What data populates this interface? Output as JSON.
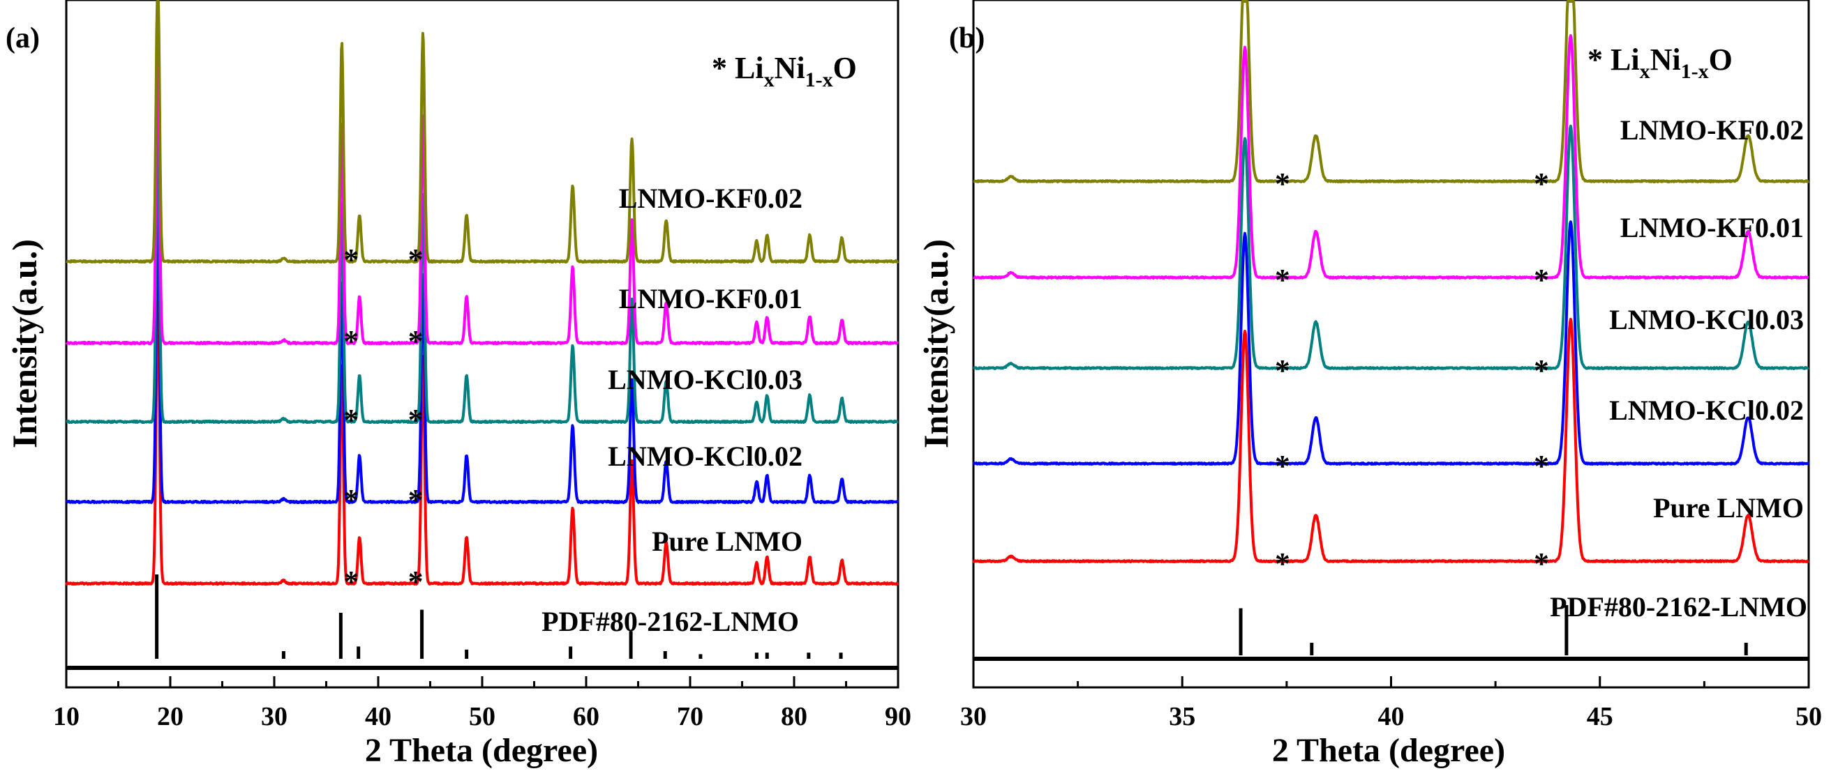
{
  "chart_data": [
    {
      "id": "a",
      "type": "line",
      "panel_label": "(a)",
      "xlabel": "2 Theta (degree)",
      "ylabel": "Intensity(a.u.)",
      "xlim": [
        10,
        90
      ],
      "xticks": [
        10,
        20,
        30,
        40,
        50,
        60,
        70,
        80,
        90
      ],
      "xtick_labels": [
        "10",
        "20",
        "30",
        "40",
        "50",
        "60",
        "70",
        "80",
        "90"
      ],
      "legend": {
        "symbol": "*",
        "base": "Li",
        "sub1": "x",
        "mid": "Ni",
        "sub2": "1-x",
        "end": "O"
      },
      "reference": {
        "name": "PDF#80-2162-LNMO",
        "lines": [
          {
            "x": 18.7,
            "h": 0.55
          },
          {
            "x": 30.9,
            "h": 0.05
          },
          {
            "x": 36.4,
            "h": 0.3
          },
          {
            "x": 38.1,
            "h": 0.08
          },
          {
            "x": 44.2,
            "h": 0.32
          },
          {
            "x": 48.5,
            "h": 0.06
          },
          {
            "x": 58.5,
            "h": 0.08
          },
          {
            "x": 64.3,
            "h": 0.18
          },
          {
            "x": 67.6,
            "h": 0.05
          },
          {
            "x": 71.0,
            "h": 0.03
          },
          {
            "x": 76.4,
            "h": 0.04
          },
          {
            "x": 77.4,
            "h": 0.04
          },
          {
            "x": 81.4,
            "h": 0.04
          },
          {
            "x": 84.5,
            "h": 0.04
          }
        ]
      },
      "peaks": [
        {
          "x": 18.8,
          "h": 1.0,
          "w": 0.16
        },
        {
          "x": 30.9,
          "h": 0.01,
          "w": 0.2
        },
        {
          "x": 36.5,
          "h": 0.75,
          "w": 0.15
        },
        {
          "x": 38.2,
          "h": 0.16,
          "w": 0.15
        },
        {
          "x": 44.3,
          "h": 0.78,
          "w": 0.16
        },
        {
          "x": 48.5,
          "h": 0.16,
          "w": 0.16
        },
        {
          "x": 58.7,
          "h": 0.26,
          "w": 0.17
        },
        {
          "x": 64.4,
          "h": 0.42,
          "w": 0.17
        },
        {
          "x": 67.7,
          "h": 0.14,
          "w": 0.17
        },
        {
          "x": 76.4,
          "h": 0.07,
          "w": 0.16
        },
        {
          "x": 77.4,
          "h": 0.09,
          "w": 0.16
        },
        {
          "x": 81.5,
          "h": 0.09,
          "w": 0.17
        },
        {
          "x": 84.6,
          "h": 0.08,
          "w": 0.17
        }
      ],
      "impurity_marks": [
        37.4,
        43.6
      ],
      "series": [
        {
          "name": "Pure LNMO",
          "color": "#ff0000"
        },
        {
          "name": "LNMO-KCl0.02",
          "color": "#0000ff"
        },
        {
          "name": "LNMO-KCl0.03",
          "color": "#008080"
        },
        {
          "name": "LNMO-KF0.01",
          "color": "#ff00ff"
        },
        {
          "name": "LNMO-KF0.02",
          "color": "#808000"
        }
      ]
    },
    {
      "id": "b",
      "type": "line",
      "panel_label": "(b)",
      "xlabel": "2 Theta (degree)",
      "ylabel": "Intensity(a.u.)",
      "xlim": [
        30,
        50
      ],
      "xticks": [
        30,
        35,
        40,
        45,
        50
      ],
      "xtick_labels": [
        "30",
        "35",
        "40",
        "45",
        "50"
      ],
      "legend": {
        "symbol": "*",
        "base": "Li",
        "sub1": "x",
        "mid": "Ni",
        "sub2": "1-x",
        "end": "O"
      },
      "reference": {
        "name": "PDF#80-2162-LNMO",
        "lines": [
          {
            "x": 36.4,
            "h": 0.45
          },
          {
            "x": 38.1,
            "h": 0.12
          },
          {
            "x": 44.2,
            "h": 0.48
          },
          {
            "x": 48.5,
            "h": 0.12
          }
        ]
      },
      "peaks": [
        {
          "x": 30.9,
          "h": 0.02,
          "w": 0.08
        },
        {
          "x": 36.5,
          "h": 1.0,
          "w": 0.09
        },
        {
          "x": 38.2,
          "h": 0.2,
          "w": 0.09
        },
        {
          "x": 44.3,
          "h": 1.05,
          "w": 0.1
        },
        {
          "x": 48.55,
          "h": 0.2,
          "w": 0.1
        }
      ],
      "impurity_marks": [
        37.4,
        43.6
      ],
      "series": [
        {
          "name": "Pure LNMO",
          "color": "#ff0000"
        },
        {
          "name": "LNMO-KCl0.02",
          "color": "#0000ff"
        },
        {
          "name": "LNMO-KCl0.03",
          "color": "#008080"
        },
        {
          "name": "LNMO-KF0.01",
          "color": "#ff00ff"
        },
        {
          "name": "LNMO-KF0.02",
          "color": "#808000"
        }
      ]
    }
  ]
}
